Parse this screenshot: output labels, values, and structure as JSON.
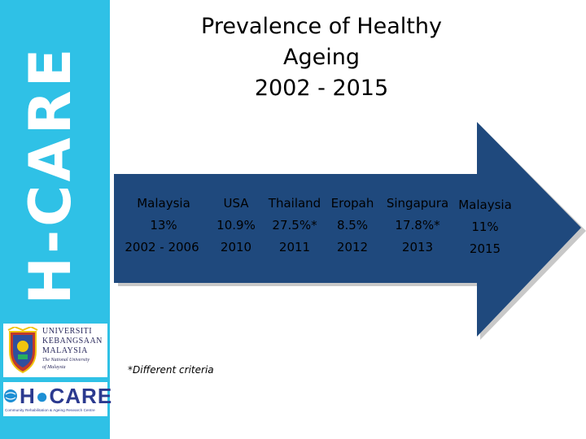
{
  "sidebar": {
    "title": "H-CARE",
    "ukm_logo": {
      "line1": "Universiti",
      "line2": "Kebangsaan",
      "line3": "Malaysia",
      "sub1": "The National University",
      "sub2": "of Malaysia"
    },
    "hcare_logo": {
      "mark_prefix": "H",
      "mark_suffix": "CARE",
      "subtitle": "Community Rehabilitation & Ageing Research Centre"
    }
  },
  "slide": {
    "title_lines": [
      "Prevalence of Healthy",
      "Ageing",
      "2002 - 2015"
    ],
    "colors": {
      "sidebar": "#2fc1e6",
      "arrow_fill": "#1f497d",
      "arrow_shadow": "#c8c8c8"
    },
    "columns": [
      {
        "country": "Malaysia",
        "value": "13%",
        "period": "2002 - 2006"
      },
      {
        "country": "USA",
        "value": "10.9%",
        "period": "2010"
      },
      {
        "country": "Thailand",
        "value": "27.5%*",
        "period": "2011"
      },
      {
        "country": "Eropah",
        "value": "8.5%",
        "period": "2012"
      },
      {
        "country": "Singapura",
        "value": "17.8%*",
        "period": "2013"
      },
      {
        "country": "Malaysia",
        "value": "11%",
        "period": "2015"
      }
    ],
    "footnote": "*Different criteria"
  }
}
